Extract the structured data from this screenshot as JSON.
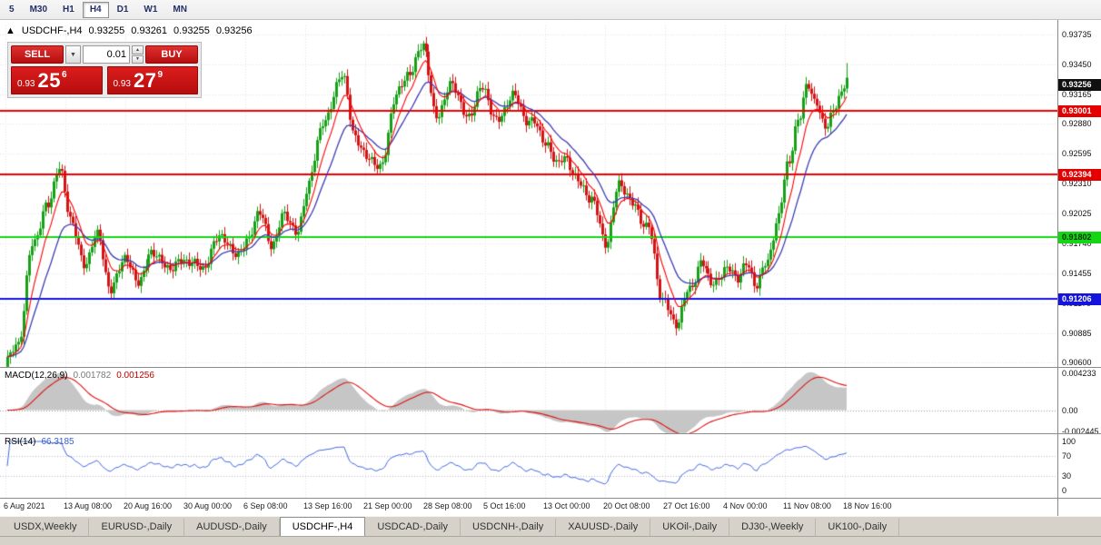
{
  "toolbar": {
    "timeframes": [
      {
        "label": "5",
        "active": false
      },
      {
        "label": "M30",
        "active": false
      },
      {
        "label": "H1",
        "active": false
      },
      {
        "label": "H4",
        "active": true
      },
      {
        "label": "D1",
        "active": false
      },
      {
        "label": "W1",
        "active": false
      },
      {
        "label": "MN",
        "active": false
      }
    ]
  },
  "trade_panel": {
    "sell_label": "SELL",
    "buy_label": "BUY",
    "volume": "0.01",
    "dropdown_glyph": "▼",
    "spin_up_glyph": "▲",
    "spin_down_glyph": "▼",
    "bid": {
      "prefix": "0.93",
      "big": "25",
      "sup": "6"
    },
    "ask": {
      "prefix": "0.93",
      "big": "27",
      "sup": "9"
    }
  },
  "chart": {
    "header": {
      "arrow": "▲",
      "symbol_period": "USDCHF-,H4",
      "open": "0.93255",
      "high": "0.93261",
      "low": "0.93255",
      "close": "0.93256"
    },
    "price_axis": {
      "ticks": [
        "0.93735",
        "0.93450",
        "0.93165",
        "0.92880",
        "0.92595",
        "0.92310",
        "0.92025",
        "0.91740",
        "0.91455",
        "0.91170",
        "0.90885",
        "0.90600"
      ]
    },
    "current_price": {
      "text": "0.93256",
      "value": 0.93256,
      "bg": "#101010",
      "fg": "#ffffff"
    },
    "levels": [
      {
        "text": "0.93001",
        "value": 0.93001,
        "color": "#f00000",
        "badge_bg": "#e40000",
        "badge_fg": "#ffffff"
      },
      {
        "text": "0.92394",
        "value": 0.92394,
        "color": "#f00000",
        "badge_bg": "#e40000",
        "badge_fg": "#ffffff"
      },
      {
        "text": "0.91802",
        "value": 0.91802,
        "color": "#15d615",
        "badge_bg": "#15d615",
        "badge_fg": "#033003"
      },
      {
        "text": "0.91206",
        "value": 0.91206,
        "color": "#1414e0",
        "badge_bg": "#1414dc",
        "badge_fg": "#ffffff"
      }
    ],
    "time_axis": [
      "6 Aug 2021",
      "13 Aug 08:00",
      "20 Aug 16:00",
      "30 Aug 00:00",
      "6 Sep 08:00",
      "13 Sep 16:00",
      "21 Sep 00:00",
      "28 Sep 08:00",
      "5 Oct 16:00",
      "13 Oct 00:00",
      "20 Oct 08:00",
      "27 Oct 16:00",
      "4 Nov 00:00",
      "11 Nov 08:00",
      "18 Nov 16:00"
    ],
    "price_range": {
      "top": 0.9382,
      "bottom": 0.9056
    },
    "bars": 310,
    "price_path": [
      [
        0.0,
        0.906
      ],
      [
        0.012,
        0.9082
      ],
      [
        0.03,
        0.917
      ],
      [
        0.048,
        0.9215
      ],
      [
        0.06,
        0.9243
      ],
      [
        0.075,
        0.92
      ],
      [
        0.092,
        0.9152
      ],
      [
        0.108,
        0.9183
      ],
      [
        0.123,
        0.9128
      ],
      [
        0.14,
        0.916
      ],
      [
        0.158,
        0.9138
      ],
      [
        0.175,
        0.9168
      ],
      [
        0.195,
        0.9147
      ],
      [
        0.214,
        0.9162
      ],
      [
        0.232,
        0.9146
      ],
      [
        0.252,
        0.9185
      ],
      [
        0.268,
        0.9162
      ],
      [
        0.286,
        0.9178
      ],
      [
        0.3,
        0.92
      ],
      [
        0.315,
        0.9177
      ],
      [
        0.33,
        0.9198
      ],
      [
        0.344,
        0.9186
      ],
      [
        0.358,
        0.9228
      ],
      [
        0.378,
        0.9296
      ],
      [
        0.398,
        0.9332
      ],
      [
        0.413,
        0.9282
      ],
      [
        0.428,
        0.9252
      ],
      [
        0.443,
        0.9248
      ],
      [
        0.462,
        0.931
      ],
      [
        0.478,
        0.934
      ],
      [
        0.494,
        0.9362
      ],
      [
        0.51,
        0.93
      ],
      [
        0.53,
        0.9322
      ],
      [
        0.548,
        0.9298
      ],
      [
        0.566,
        0.9318
      ],
      [
        0.585,
        0.9294
      ],
      [
        0.605,
        0.9313
      ],
      [
        0.625,
        0.9288
      ],
      [
        0.641,
        0.927
      ],
      [
        0.658,
        0.9252
      ],
      [
        0.676,
        0.9242
      ],
      [
        0.695,
        0.9214
      ],
      [
        0.712,
        0.9178
      ],
      [
        0.728,
        0.9226
      ],
      [
        0.745,
        0.9215
      ],
      [
        0.762,
        0.9186
      ],
      [
        0.78,
        0.9124
      ],
      [
        0.797,
        0.9093
      ],
      [
        0.812,
        0.9136
      ],
      [
        0.826,
        0.9152
      ],
      [
        0.84,
        0.9136
      ],
      [
        0.856,
        0.9152
      ],
      [
        0.868,
        0.9136
      ],
      [
        0.88,
        0.916
      ],
      [
        0.892,
        0.9132
      ],
      [
        0.904,
        0.9152
      ],
      [
        0.918,
        0.9202
      ],
      [
        0.93,
        0.9245
      ],
      [
        0.942,
        0.9292
      ],
      [
        0.953,
        0.933
      ],
      [
        0.963,
        0.9302
      ],
      [
        0.973,
        0.9287
      ],
      [
        0.983,
        0.9302
      ],
      [
        0.993,
        0.9315
      ],
      [
        1.0,
        0.9328
      ]
    ],
    "colors": {
      "up": "#18a018",
      "down": "#d41414",
      "ma_fast": "#ff0000",
      "ma_slow": "#3c3cb4",
      "grid": "#e4e4e4"
    }
  },
  "macd": {
    "name": "MACD(12,26,9)",
    "main_value": "0.001782",
    "signal_value": "0.001256",
    "axis": [
      {
        "text": "0.004233",
        "value": 0.004233
      },
      {
        "text": "0.00",
        "value": 0
      },
      {
        "text": "-0.002445",
        "value": -0.002445
      }
    ],
    "range": {
      "top": 0.004233,
      "bottom": -0.002445
    },
    "params": {
      "fast": 12,
      "slow": 26,
      "signal": 9
    },
    "colors": {
      "hist": "#c6c6c6",
      "signal": "#e01010"
    }
  },
  "rsi": {
    "name": "RSI(14)",
    "value": "66.3185",
    "period": 14,
    "axis": [
      {
        "text": "100",
        "value": 100
      },
      {
        "text": "70",
        "value": 70
      },
      {
        "text": "30",
        "value": 30
      },
      {
        "text": "0",
        "value": 0
      }
    ],
    "levels": [
      70,
      30
    ],
    "color": "#4169e1"
  },
  "tabs": [
    {
      "label": "USDX,Weekly",
      "active": false
    },
    {
      "label": "EURUSD-,Daily",
      "active": false
    },
    {
      "label": "AUDUSD-,Daily",
      "active": false
    },
    {
      "label": "USDCHF-,H4",
      "active": true
    },
    {
      "label": "USDCAD-,Daily",
      "active": false
    },
    {
      "label": "USDCNH-,Daily",
      "active": false
    },
    {
      "label": "XAUUSD-,Daily",
      "active": false
    },
    {
      "label": "UKOil-,Daily",
      "active": false
    },
    {
      "label": "DJ30-,Weekly",
      "active": false
    },
    {
      "label": "UK100-,Daily",
      "active": false
    }
  ]
}
